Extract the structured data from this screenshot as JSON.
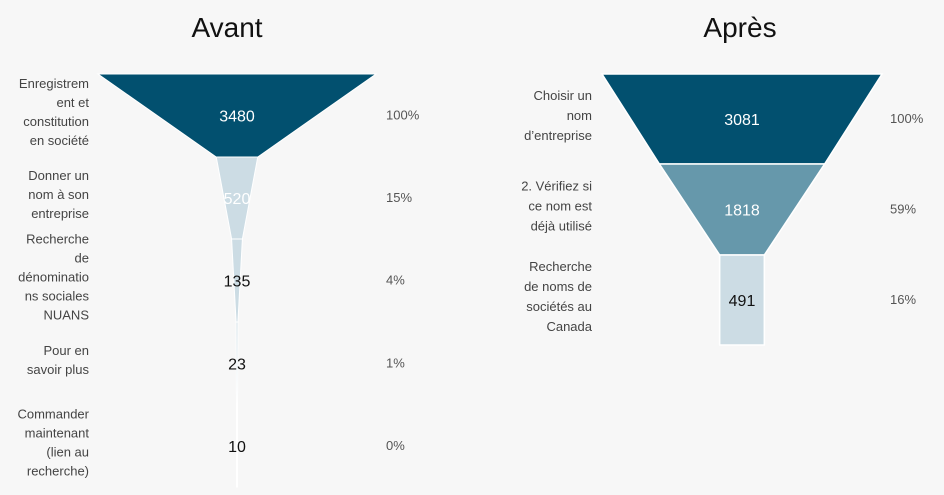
{
  "chart_data": [
    {
      "type": "funnel",
      "title": "Avant",
      "stages": [
        {
          "label": "Enregistrement et constitution en société",
          "lines": [
            "Enregistrem",
            "ent et",
            "constitution",
            "en société"
          ],
          "value": 3480,
          "percent": "100%"
        },
        {
          "label": "Donner un nom à son entreprise",
          "lines": [
            "Donner un",
            "nom à son",
            "entreprise"
          ],
          "value": 520,
          "percent": "15%"
        },
        {
          "label": "Recherche de dénominations sociales NUANS",
          "lines": [
            "Recherche",
            "de",
            "dénominatio",
            "ns sociales",
            "NUANS"
          ],
          "value": 135,
          "percent": "4%"
        },
        {
          "label": "Pour en savoir plus",
          "lines": [
            "Pour en",
            "savoir plus"
          ],
          "value": 23,
          "percent": "1%"
        },
        {
          "label": "Commander maintenant (lien au recherche)",
          "lines": [
            "Commander",
            "maintenant",
            "(lien au",
            "recherche)"
          ],
          "value": 10,
          "percent": "0%"
        }
      ]
    },
    {
      "type": "funnel",
      "title": "Après",
      "stages": [
        {
          "label": "Choisir un nom d’entreprise",
          "lines": [
            "Choisir un",
            "nom",
            "d’entreprise"
          ],
          "value": 3081,
          "percent": "100%"
        },
        {
          "label": "2. Vérifiez si ce nom est déjà utilisé",
          "lines": [
            "2. Vérifiez si",
            "ce nom est",
            "déjà utilisé"
          ],
          "value": 1818,
          "percent": "59%"
        },
        {
          "label": "Recherche de noms de sociétés au Canada",
          "lines": [
            "Recherche",
            "de noms de",
            "sociétés au",
            "Canada"
          ],
          "value": 491,
          "percent": "16%"
        }
      ]
    }
  ],
  "colors": {
    "stage1": "#02506f",
    "stage2": "#6698ab",
    "stage3": "#ccdce4",
    "background": "#f7f7f7"
  }
}
